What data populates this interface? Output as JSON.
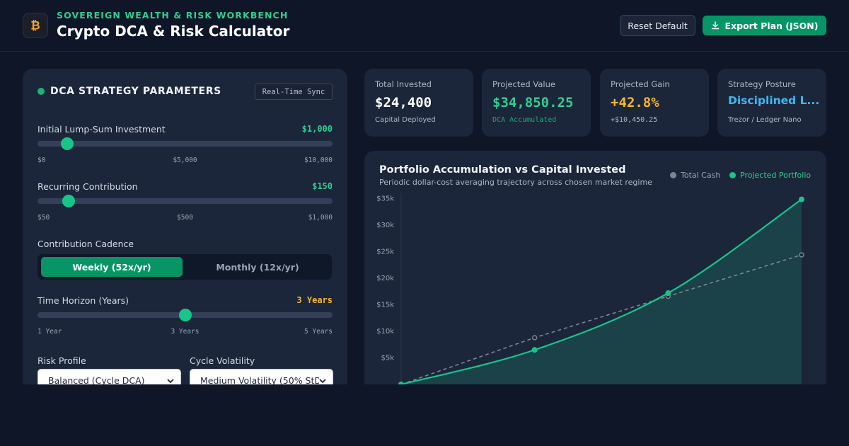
{
  "header": {
    "eyebrow": "SOVEREIGN WEALTH & RISK WORKBENCH",
    "title": "Crypto DCA & Risk Calculator",
    "reset_label": "Reset Default",
    "export_label": "Export Plan (JSON)",
    "logo_icon": "bitcoin-icon",
    "accent": "#2fcf8f"
  },
  "params": {
    "title": "DCA STRATEGY PARAMETERS",
    "sync_badge": "Real-Time Sync",
    "lump_sum": {
      "label": "Initial Lump-Sum Investment",
      "value": "$1,000",
      "level": 0.1,
      "ticks": [
        "$0",
        "$5,000",
        "$10,000"
      ]
    },
    "recurring": {
      "label": "Recurring Contribution",
      "value": "$150",
      "level": 0.1053,
      "ticks": [
        "$50",
        "$500",
        "$1,000"
      ]
    },
    "cadence": {
      "label": "Contribution Cadence",
      "options": [
        "Weekly (52x/yr)",
        "Monthly (12x/yr)"
      ],
      "selected": "Weekly (52x/yr)"
    },
    "horizon": {
      "label": "Time Horizon (Years)",
      "value": "3 Years",
      "level": 0.5,
      "ticks": [
        "1 Year",
        "3 Years",
        "5 Years"
      ]
    },
    "risk_profile": {
      "label": "Risk Profile",
      "value": "Balanced (Cycle DCA)"
    },
    "volatility": {
      "label": "Cycle Volatility",
      "value": "Medium Volatility (50% StD"
    }
  },
  "stats": [
    {
      "label": "Total Invested",
      "value": "$24,400",
      "sub": "Capital Deployed",
      "color": "#ffffff"
    },
    {
      "label": "Projected Value",
      "value": "$34,850.25",
      "sub": "DCA Accumulated",
      "color": "#2fcf8f"
    },
    {
      "label": "Projected Gain",
      "value": "+42.8%",
      "sub": "+$10,450.25",
      "color": "#f5b52e"
    },
    {
      "label": "Strategy Posture",
      "value": "Disciplined L...",
      "sub": "Trezor / Ledger Nano",
      "color": "#3cb8f5"
    }
  ],
  "chart": {
    "title": "Portfolio Accumulation vs Capital Invested",
    "subtitle": "Periodic dollar-cost averaging trajectory across chosen market regime",
    "legend": [
      "Total Cash",
      "Projected Portfolio"
    ]
  },
  "chart_data": {
    "type": "line",
    "title": "Portfolio Accumulation vs Capital Invested",
    "x": [
      0,
      1,
      2,
      3
    ],
    "ylim": [
      0,
      35000
    ],
    "yticks": [
      5000,
      10000,
      15000,
      20000,
      25000,
      30000,
      35000
    ],
    "ytick_labels": [
      "$5k",
      "$10k",
      "$15k",
      "$20k",
      "$25k",
      "$30k",
      "$35k"
    ],
    "grid": false,
    "legend_position": "top-right",
    "series": [
      {
        "name": "Total Cash",
        "values": [
          0,
          8800,
          16600,
          24400
        ],
        "color": "#7b8596",
        "style": "dashed"
      },
      {
        "name": "Projected Portfolio",
        "values": [
          0,
          6500,
          17200,
          34850
        ],
        "color": "#18c48a",
        "style": "solid-area"
      }
    ]
  }
}
